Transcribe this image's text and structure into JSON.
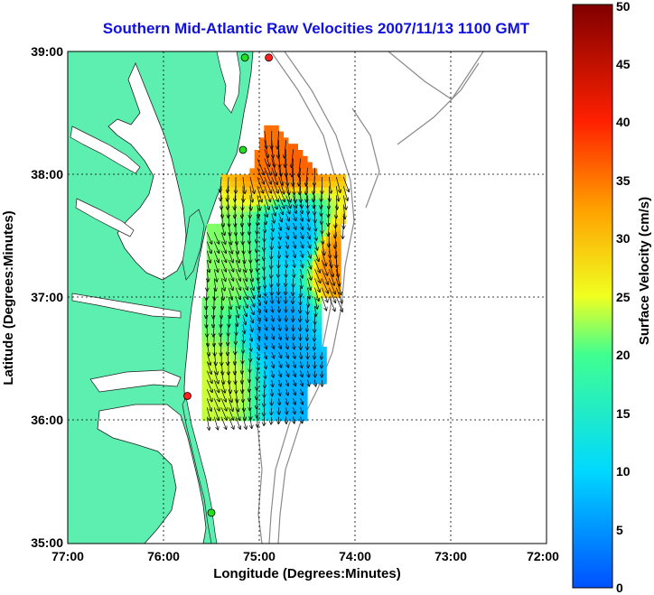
{
  "title": "Southern Mid-Atlantic Raw Velocities 2007/11/13 1100 GMT",
  "x_axis": {
    "label": "Longitude (Degrees:Minutes)",
    "ticks": [
      "77:00",
      "76:00",
      "75:00",
      "74:00",
      "73:00",
      "72:00"
    ]
  },
  "y_axis": {
    "label": "Latitude (Degrees:Minutes)",
    "ticks": [
      "39:00",
      "38:00",
      "37:00",
      "36:00",
      "35:00"
    ]
  },
  "colorbar": {
    "label": "Surface Velocity (cm/s)",
    "ticks": [
      "0",
      "5",
      "10",
      "15",
      "20",
      "25",
      "30",
      "35",
      "40",
      "45",
      "50"
    ],
    "min": 0,
    "max": 50
  },
  "colors": {
    "land": "#5cefb0",
    "water": "#ffffff",
    "title": "#1010e0",
    "station_red": "#ff2020",
    "station_green": "#20e020"
  },
  "chart_data": {
    "type": "heatmap",
    "lon_range": [
      -77,
      -72
    ],
    "lat_range": [
      35,
      39
    ],
    "speed_samples": [
      {
        "lon": -74.8,
        "lat": 38.2,
        "speed": 35
      },
      {
        "lon": -74.6,
        "lat": 38.2,
        "speed": 36
      },
      {
        "lon": -74.6,
        "lat": 37.5,
        "speed": 8
      },
      {
        "lon": -74.8,
        "lat": 36.8,
        "speed": 6
      },
      {
        "lon": -75.3,
        "lat": 37.2,
        "speed": 22
      },
      {
        "lon": -75.4,
        "lat": 36.3,
        "speed": 24
      },
      {
        "lon": -74.2,
        "lat": 37.3,
        "speed": 33
      },
      {
        "lon": -74.6,
        "lat": 36.3,
        "speed": 7
      }
    ],
    "stations": [
      {
        "lon": -74.9,
        "lat": 38.95,
        "color": "red"
      },
      {
        "lon": -75.15,
        "lat": 38.95,
        "color": "green"
      },
      {
        "lon": -75.17,
        "lat": 38.2,
        "color": "green"
      },
      {
        "lon": -75.75,
        "lat": 36.2,
        "color": "red"
      },
      {
        "lon": -75.5,
        "lat": 35.25,
        "color": "green"
      }
    ]
  }
}
